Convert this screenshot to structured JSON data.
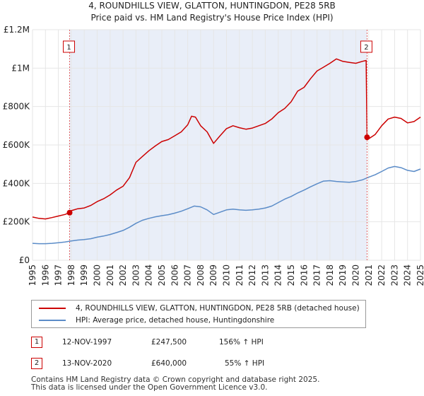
{
  "chart_data": {
    "type": "line",
    "title": "4, ROUNDHILLS VIEW, GLATTON, HUNTINGDON, PE28 5RB",
    "subtitle": "Price paid vs. HM Land Registry's House Price Index (HPI)",
    "xlim": [
      1995,
      2025
    ],
    "ylim": [
      0,
      1200000
    ],
    "x_ticks": [
      "1995",
      "1996",
      "1997",
      "1998",
      "1999",
      "2000",
      "2001",
      "2002",
      "2003",
      "2004",
      "2005",
      "2006",
      "2007",
      "2008",
      "2009",
      "2010",
      "2011",
      "2012",
      "2013",
      "2014",
      "2015",
      "2016",
      "2017",
      "2018",
      "2019",
      "2020",
      "2021",
      "2022",
      "2023",
      "2024",
      "2025"
    ],
    "y_ticks": [
      {
        "value": 0,
        "label": "£0"
      },
      {
        "value": 200000,
        "label": "£200K"
      },
      {
        "value": 400000,
        "label": "£400K"
      },
      {
        "value": 600000,
        "label": "£600K"
      },
      {
        "value": 800000,
        "label": "£800K"
      },
      {
        "value": 1000000,
        "label": "£1M"
      },
      {
        "value": 1200000,
        "label": "£1.2M"
      }
    ],
    "grid": true,
    "shaded_region": {
      "from": 1997.87,
      "to": 2020.87
    },
    "series": [
      {
        "name": "4, ROUNDHILLS VIEW, GLATTON, HUNTINGDON, PE28 5RB (detached house)",
        "color": "#cc0000",
        "x": [
          1995,
          1995.5,
          1996,
          1996.5,
          1997,
          1997.5,
          1997.87,
          1998,
          1998.5,
          1999,
          1999.5,
          2000,
          2000.5,
          2001,
          2001.5,
          2002,
          2002.5,
          2003,
          2003.5,
          2004,
          2004.5,
          2005,
          2005.5,
          2006,
          2006.5,
          2007,
          2007.3,
          2007.6,
          2008,
          2008.5,
          2009,
          2009.5,
          2010,
          2010.5,
          2011,
          2011.5,
          2012,
          2012.5,
          2013,
          2013.5,
          2014,
          2014.5,
          2015,
          2015.5,
          2016,
          2016.5,
          2017,
          2017.5,
          2018,
          2018.5,
          2019,
          2019.5,
          2020,
          2020.5,
          2020.8,
          2020.87,
          2021,
          2021.5,
          2022,
          2022.5,
          2023,
          2023.5,
          2024,
          2024.5,
          2025
        ],
        "y": [
          225000,
          218000,
          215000,
          222000,
          230000,
          238000,
          247500,
          258000,
          268000,
          272000,
          285000,
          305000,
          320000,
          340000,
          365000,
          385000,
          430000,
          510000,
          540000,
          570000,
          595000,
          618000,
          628000,
          648000,
          668000,
          705000,
          750000,
          745000,
          700000,
          668000,
          608000,
          648000,
          685000,
          700000,
          690000,
          682000,
          688000,
          700000,
          712000,
          735000,
          768000,
          790000,
          825000,
          880000,
          900000,
          945000,
          985000,
          1005000,
          1025000,
          1048000,
          1035000,
          1030000,
          1025000,
          1035000,
          1040000,
          640000,
          632000,
          655000,
          700000,
          735000,
          745000,
          738000,
          715000,
          722000,
          745000
        ]
      },
      {
        "name": "HPI: Average price, detached house, Huntingdonshire",
        "color": "#5b8cc8",
        "x": [
          1995,
          1995.5,
          1996,
          1996.5,
          1997,
          1997.5,
          1998,
          1998.5,
          1999,
          1999.5,
          2000,
          2000.5,
          2001,
          2001.5,
          2002,
          2002.5,
          2003,
          2003.5,
          2004,
          2004.5,
          2005,
          2005.5,
          2006,
          2006.5,
          2007,
          2007.5,
          2008,
          2008.5,
          2009,
          2009.5,
          2010,
          2010.5,
          2011,
          2011.5,
          2012,
          2012.5,
          2013,
          2013.5,
          2014,
          2014.5,
          2015,
          2015.5,
          2016,
          2016.5,
          2017,
          2017.5,
          2018,
          2018.5,
          2019,
          2019.5,
          2020,
          2020.5,
          2021,
          2021.5,
          2022,
          2022.5,
          2023,
          2023.5,
          2024,
          2024.5,
          2025
        ],
        "y": [
          88000,
          86000,
          86000,
          88000,
          91000,
          95000,
          100000,
          105000,
          108000,
          112000,
          120000,
          126000,
          134000,
          144000,
          155000,
          172000,
          192000,
          208000,
          218000,
          226000,
          232000,
          237000,
          245000,
          255000,
          268000,
          282000,
          278000,
          262000,
          238000,
          250000,
          262000,
          266000,
          262000,
          260000,
          262000,
          266000,
          272000,
          282000,
          300000,
          318000,
          332000,
          350000,
          365000,
          382000,
          398000,
          412000,
          414000,
          410000,
          408000,
          406000,
          410000,
          418000,
          432000,
          445000,
          462000,
          480000,
          488000,
          482000,
          468000,
          462000,
          475000
        ]
      }
    ],
    "sale_markers": [
      {
        "label": "1",
        "x": 1997.87,
        "y": 247500
      },
      {
        "label": "2",
        "x": 2020.87,
        "y": 640000
      }
    ]
  },
  "legend": {
    "items": [
      {
        "label": "4, ROUNDHILLS VIEW, GLATTON, HUNTINGDON, PE28 5RB (detached house)",
        "color": "#cc0000"
      },
      {
        "label": "HPI: Average price, detached house, Huntingdonshire",
        "color": "#5b8cc8"
      }
    ]
  },
  "sales": [
    {
      "num": "1",
      "date": "12-NOV-1997",
      "price": "£247,500",
      "hpi": "156% ↑ HPI"
    },
    {
      "num": "2",
      "date": "13-NOV-2020",
      "price": "£640,000",
      "hpi": "55% ↑ HPI"
    }
  ],
  "footer": {
    "line1": "Contains HM Land Registry data © Crown copyright and database right 2025.",
    "line2": "This data is licensed under the Open Government Licence v3.0."
  }
}
